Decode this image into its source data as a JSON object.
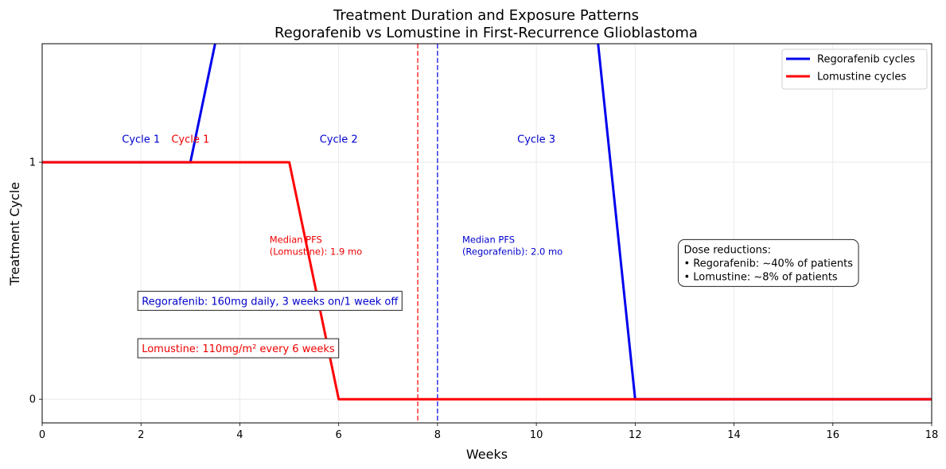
{
  "chart_data": {
    "type": "line",
    "title": "Treatment Duration and Exposure Patterns",
    "subtitle": "Regorafenib vs Lomustine in First-Recurrence Glioblastoma",
    "xlabel": "Weeks",
    "ylabel": "Treatment Cycle",
    "xlim": [
      0,
      18
    ],
    "ylim": [
      -0.1,
      1.5
    ],
    "xticks": [
      0,
      2,
      4,
      6,
      8,
      10,
      12,
      14,
      16,
      18
    ],
    "yticks": [
      0,
      1
    ],
    "grid": true,
    "legend_position": "top-right",
    "series": [
      {
        "name": "Regorafenib cycles",
        "color": "#0000ee",
        "points": [
          [
            0,
            1
          ],
          [
            3,
            1
          ],
          [
            4,
            2
          ],
          [
            11,
            2
          ],
          [
            12,
            0
          ],
          [
            18,
            0
          ]
        ]
      },
      {
        "name": "Lomustine cycles",
        "color": "#ff0000",
        "points": [
          [
            0,
            1
          ],
          [
            5,
            1
          ],
          [
            6,
            0
          ],
          [
            18,
            0
          ]
        ]
      }
    ],
    "vlines": [
      {
        "x": 7.6,
        "color": "#ff0000"
      },
      {
        "x": 8.0,
        "color": "#0000ee"
      }
    ],
    "cycle_labels": [
      {
        "text": "Cycle 1",
        "x": 2,
        "y": 1.1,
        "color": "#0000cc"
      },
      {
        "text": "Cycle 1",
        "x": 3,
        "y": 1.1,
        "color": "#ee0000"
      },
      {
        "text": "Cycle 2",
        "x": 6,
        "y": 1.1,
        "color": "#0000cc"
      },
      {
        "text": "Cycle 3",
        "x": 10,
        "y": 1.1,
        "color": "#0000cc"
      }
    ],
    "annotations": [
      {
        "lines": [
          "Median PFS",
          "(Lomustine): 1.9 mo"
        ],
        "x": 4.6,
        "y": 0.66,
        "color": "#ee0000"
      },
      {
        "lines": [
          "Median PFS",
          "(Regorafenib): 2.0 mo"
        ],
        "x": 8.5,
        "y": 0.66,
        "color": "#0000cc"
      }
    ],
    "dose_boxes": [
      {
        "text": "Regorafenib: 160mg daily, 3 weeks on/1 week off",
        "x": 2.0,
        "y": 0.415,
        "color": "#0000cc"
      },
      {
        "text": "Lomustine: 110mg/m² every 6 weeks",
        "x": 2.0,
        "y": 0.215,
        "color": "#ee0000"
      }
    ],
    "dose_reduction": {
      "lines": [
        "Dose reductions:",
        "• Regorafenib: ~40% of patients",
        "• Lomustine: ~8% of patients"
      ],
      "x": 13.0,
      "y": 0.62
    }
  }
}
